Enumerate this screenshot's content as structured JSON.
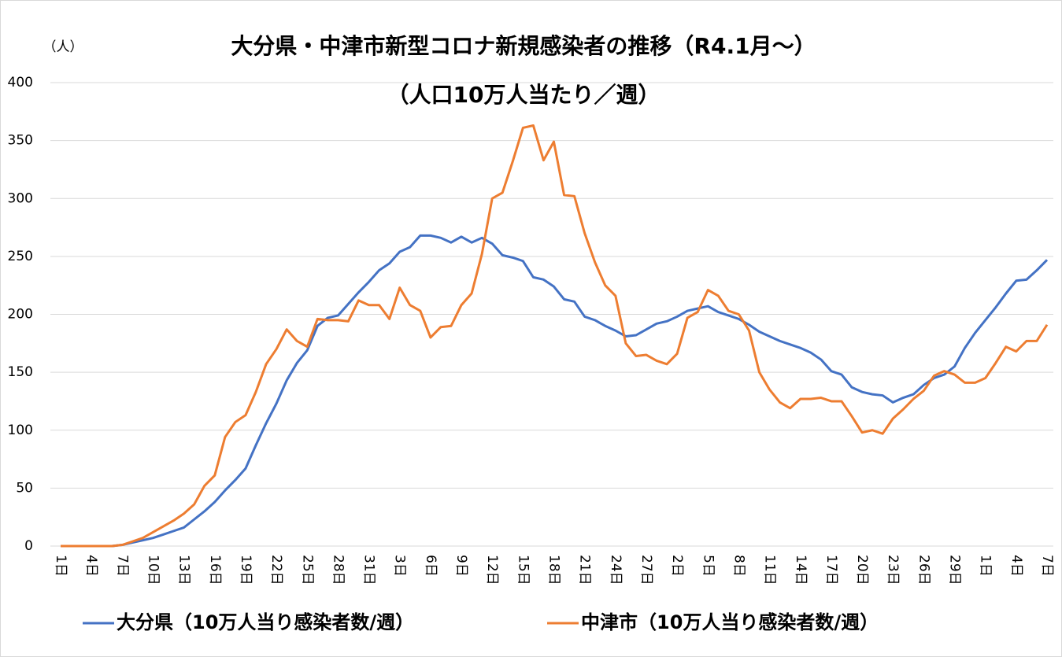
{
  "chart_data": {
    "type": "line",
    "title": "大分県・中津市新型コロナ新規感染者の推移（R4.1月～）",
    "subtitle": "（人口10万人当たり／週）",
    "y_unit": "（人）",
    "categories": [
      "1日",
      null,
      null,
      "4日",
      null,
      null,
      "7日",
      null,
      null,
      "10日",
      null,
      null,
      "13日",
      null,
      null,
      "16日",
      null,
      null,
      "19日",
      null,
      null,
      "22日",
      null,
      null,
      "25日",
      null,
      null,
      "28日",
      null,
      null,
      "31日",
      null,
      null,
      "3日",
      null,
      null,
      "6日",
      null,
      null,
      "9日",
      null,
      null,
      "12日",
      null,
      null,
      "15日",
      null,
      null,
      "18日",
      null,
      null,
      "21日",
      null,
      null,
      "24日",
      null,
      null,
      "27日",
      null,
      null,
      "2日",
      null,
      null,
      "5日",
      null,
      null,
      "8日",
      null,
      null,
      "11日",
      null,
      null,
      "14日",
      null,
      null,
      "17日",
      null,
      null,
      "20日",
      null,
      null,
      "23日",
      null,
      null,
      "26日",
      null,
      null,
      "29日",
      null,
      null,
      "1日",
      null,
      null,
      "4日",
      null,
      null,
      "7日"
    ],
    "series": [
      {
        "name": "大分県（10万人当り感染者数/週）",
        "color": "#4472c4",
        "values": [
          0,
          0,
          0,
          0,
          0,
          0,
          1,
          3,
          5,
          7,
          10,
          13,
          16,
          23,
          30,
          38,
          48,
          57,
          67,
          87,
          106,
          123,
          143,
          158,
          169,
          190,
          197,
          199,
          209,
          219,
          228,
          238,
          244,
          254,
          258,
          268,
          268,
          266,
          262,
          267,
          262,
          266,
          261,
          251,
          249,
          246,
          232,
          230,
          224,
          213,
          211,
          198,
          195,
          190,
          186,
          181,
          182,
          187,
          192,
          194,
          198,
          203,
          205,
          207,
          202,
          199,
          196,
          191,
          185,
          181,
          177,
          174,
          171,
          167,
          161,
          151,
          148,
          137,
          133,
          131,
          130,
          124,
          128,
          131,
          139,
          145,
          148,
          155,
          171,
          184,
          195,
          206,
          218,
          229,
          230,
          238,
          247
        ]
      },
      {
        "name": "中津市（10万人当り感染者数/週）",
        "color": "#ed7d31",
        "values": [
          0,
          0,
          0,
          0,
          0,
          0,
          1,
          4,
          7,
          12,
          17,
          22,
          28,
          36,
          52,
          61,
          94,
          107,
          113,
          133,
          157,
          170,
          187,
          177,
          172,
          196,
          195,
          195,
          194,
          212,
          208,
          208,
          196,
          223,
          208,
          203,
          180,
          189,
          190,
          208,
          218,
          252,
          300,
          305,
          332,
          361,
          363,
          333,
          349,
          303,
          302,
          270,
          245,
          225,
          216,
          175,
          164,
          165,
          160,
          157,
          166,
          197,
          202,
          221,
          216,
          203,
          200,
          186,
          150,
          135,
          124,
          119,
          127,
          127,
          128,
          125,
          125,
          112,
          98,
          100,
          97,
          110,
          118,
          127,
          134,
          147,
          151,
          148,
          141,
          141,
          145,
          158,
          172,
          168,
          177,
          177,
          191
        ]
      }
    ],
    "ylim": [
      0,
      400
    ],
    "yticks": [
      0,
      50,
      100,
      150,
      200,
      250,
      300,
      350,
      400
    ],
    "grid": true
  }
}
